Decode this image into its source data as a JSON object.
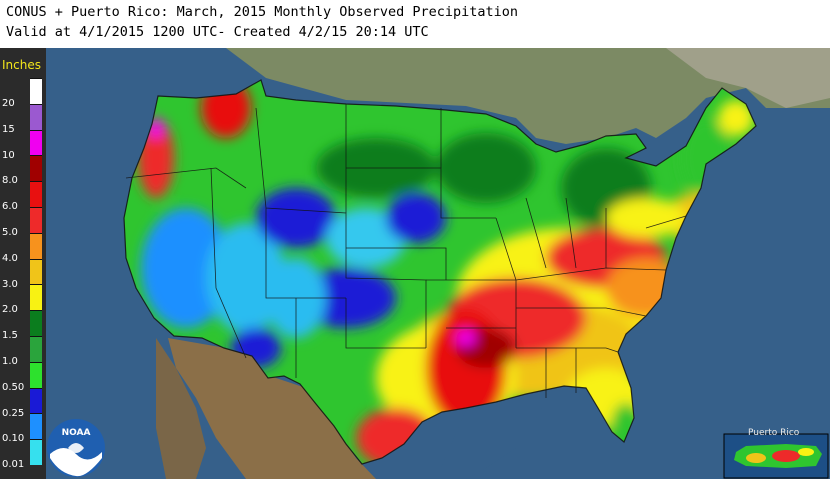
{
  "header": {
    "title": "CONUS + Puerto Rico: March, 2015 Monthly Observed Precipitation",
    "subtitle": "Valid at 4/1/2015 1200 UTC- Created 4/2/15 20:14 UTC"
  },
  "legend": {
    "unit": "Inches",
    "items": [
      {
        "label": "20",
        "color": "#ffffff"
      },
      {
        "label": "15",
        "color": "#9b59d0"
      },
      {
        "label": "10",
        "color": "#f000f0"
      },
      {
        "label": "8.0",
        "color": "#a00000"
      },
      {
        "label": "6.0",
        "color": "#e81010"
      },
      {
        "label": "5.0",
        "color": "#ee2a2a"
      },
      {
        "label": "4.0",
        "color": "#f7921d"
      },
      {
        "label": "3.0",
        "color": "#f0c419"
      },
      {
        "label": "2.0",
        "color": "#f8f213"
      },
      {
        "label": "1.5",
        "color": "#0b7d1e"
      },
      {
        "label": "1.0",
        "color": "#2aa43c"
      },
      {
        "label": "0.50",
        "color": "#2de12d"
      },
      {
        "label": "0.25",
        "color": "#1a1ad6"
      },
      {
        "label": "0.10",
        "color": "#1e90ff"
      },
      {
        "label": "0.01",
        "color": "#36e0ee"
      }
    ]
  },
  "inset": {
    "label": "Puerto Rico"
  },
  "logo": {
    "text": "NOAA"
  },
  "colors": {
    "ocean": "#36608a",
    "land_outside": "#8a7a60",
    "border": "#111111"
  }
}
